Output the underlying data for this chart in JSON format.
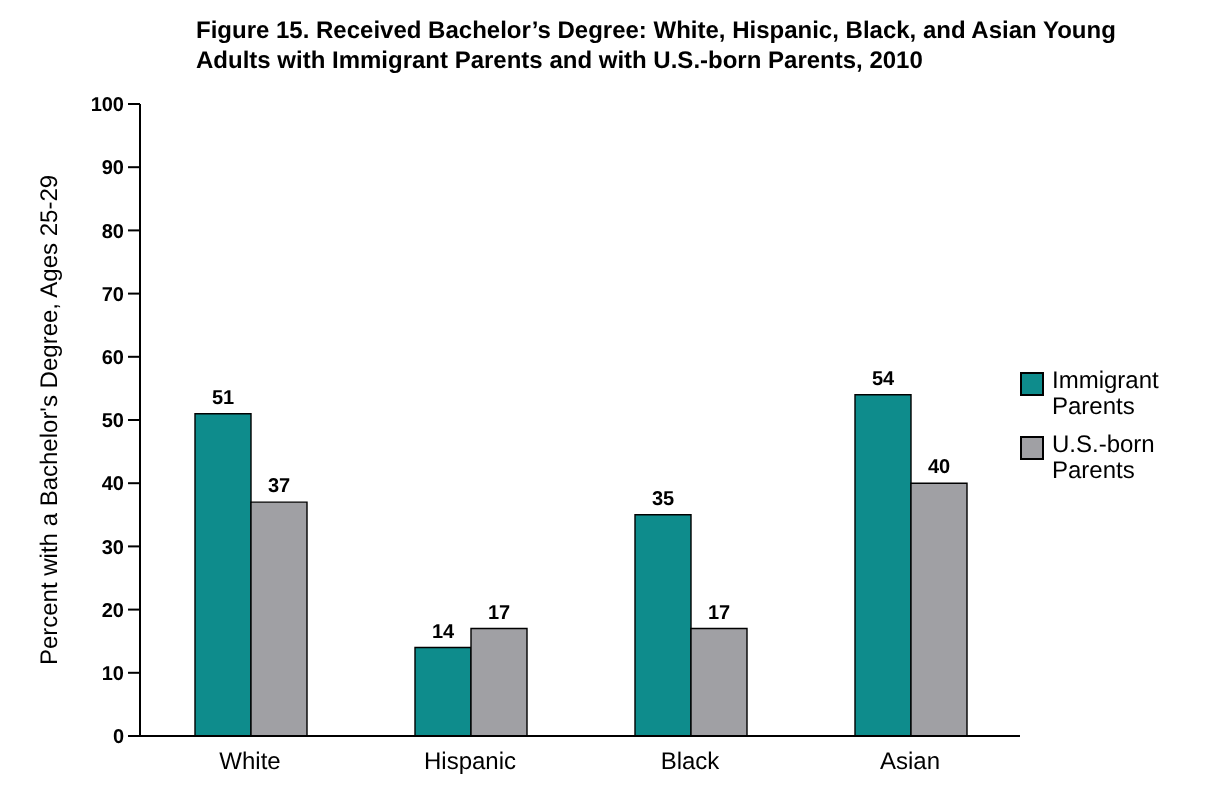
{
  "chart_data": {
    "type": "bar",
    "title": "Figure 15. Received Bachelor’s Degree: White, Hispanic, Black, and Asian Young Adults with Immigrant Parents and with U.S.-born Parents, 2010",
    "ylabel": "Percent with a Bachelor's Degree, Ages 25-29",
    "categories": [
      "White",
      "Hispanic",
      "Black",
      "Asian"
    ],
    "series": [
      {
        "name": "Immigrant Parents",
        "color": "#0e8c8c",
        "values": [
          51,
          14,
          35,
          54
        ]
      },
      {
        "name": "U.S.-born Parents",
        "color": "#a0a0a4",
        "values": [
          37,
          17,
          17,
          40
        ]
      }
    ],
    "ylim": [
      0,
      100
    ],
    "yticks": [
      0,
      10,
      20,
      30,
      40,
      50,
      60,
      70,
      80,
      90,
      100
    ],
    "grid": false,
    "legend": "right",
    "data_labels": true
  }
}
